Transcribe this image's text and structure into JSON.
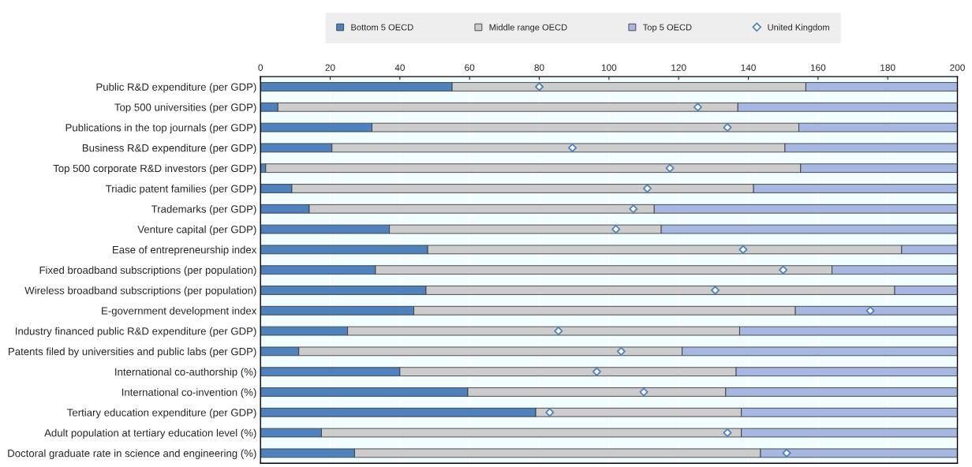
{
  "chart_data": {
    "type": "bar",
    "orientation": "horizontal",
    "stacked": true,
    "categories": [
      "Public R&D expenditure (per GDP)",
      "Top 500 universities (per GDP)",
      "Publications in the top journals (per GDP)",
      "Business R&D expenditure (per GDP)",
      "Top 500 corporate R&D investors (per GDP)",
      "Triadic patent families (per GDP)",
      "Trademarks (per GDP)",
      "Venture capital (per GDP)",
      "Ease of entrepreneurship index",
      "Fixed broadband subscriptions (per population)",
      "Wireless broadband subscriptions (per population)",
      "E-government development index",
      "Industry financed public R&D expenditure (per GDP)",
      "Patents filed by universities and public labs (per GDP)",
      "International co-authorship (%)",
      "International co-invention (%)",
      "Tertiary education expenditure (per GDP)",
      "Adult population at tertiary education level (%)",
      "Doctoral graduate rate in science and engineering (%)"
    ],
    "series": [
      {
        "name": "Bottom 5 OECD",
        "color": "#4f81bd",
        "values": [
          55,
          5,
          32,
          20.5,
          1.5,
          9,
          14,
          37,
          48,
          33,
          47.5,
          44,
          25,
          11,
          40,
          59.5,
          79,
          17.5,
          27
        ]
      },
      {
        "name": "Middle range OECD",
        "color": "#cccccc",
        "values": [
          101.5,
          132,
          122.5,
          130,
          153.5,
          132.5,
          99,
          78,
          136,
          131,
          134.5,
          109.5,
          112.5,
          110,
          96.5,
          74,
          59,
          120.5,
          116.5
        ]
      },
      {
        "name": "Top 5 OECD",
        "color": "#a6b8e2",
        "values": [
          43.5,
          63,
          45.5,
          49.5,
          45,
          58.5,
          87,
          85,
          16,
          36,
          18,
          46.5,
          62.5,
          79,
          63.5,
          66.5,
          62,
          62,
          56.5
        ]
      },
      {
        "name": "United Kingdom",
        "type": "scatter",
        "marker": "diamond",
        "color": "#4f81bd",
        "values": [
          80,
          125.5,
          134,
          89.5,
          117.5,
          111,
          107,
          102,
          138.5,
          150,
          130.5,
          175,
          85.5,
          103.5,
          96.5,
          110,
          83,
          134,
          151
        ]
      }
    ],
    "xlim": [
      0,
      200
    ],
    "xticks": [
      0,
      20,
      40,
      60,
      80,
      100,
      120,
      140,
      160,
      180,
      200
    ],
    "grid": "x",
    "legend": "top"
  }
}
